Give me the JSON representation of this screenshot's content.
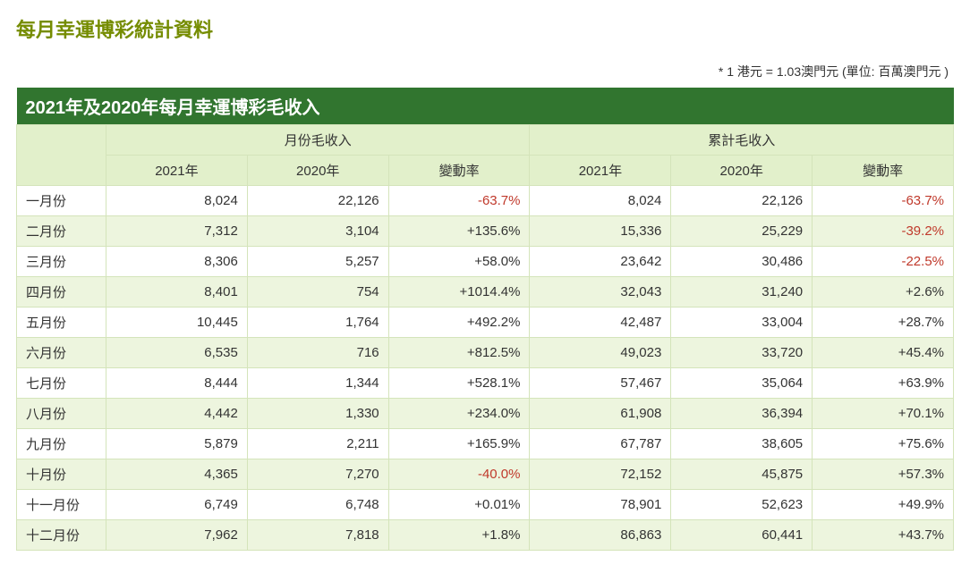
{
  "title": "每月幸運博彩統計資料",
  "note": "* 1 港元 = 1.03澳門元 (單位: 百萬澳門元  )",
  "table": {
    "caption": "2021年及2020年每月幸運博彩毛收入",
    "group_headers": [
      "月份毛收入",
      "累計毛收入"
    ],
    "sub_headers": [
      "2021年",
      "2020年",
      "變動率",
      "2021年",
      "2020年",
      "變動率"
    ],
    "rows": [
      {
        "label": "一月份",
        "m2021": "8,024",
        "m2020": "22,126",
        "mRate": "-63.7%",
        "mNeg": true,
        "c2021": "8,024",
        "c2020": "22,126",
        "cRate": "-63.7%",
        "cNeg": true
      },
      {
        "label": "二月份",
        "m2021": "7,312",
        "m2020": "3,104",
        "mRate": "+135.6%",
        "mNeg": false,
        "c2021": "15,336",
        "c2020": "25,229",
        "cRate": "-39.2%",
        "cNeg": true
      },
      {
        "label": "三月份",
        "m2021": "8,306",
        "m2020": "5,257",
        "mRate": "+58.0%",
        "mNeg": false,
        "c2021": "23,642",
        "c2020": "30,486",
        "cRate": "-22.5%",
        "cNeg": true
      },
      {
        "label": "四月份",
        "m2021": "8,401",
        "m2020": "754",
        "mRate": "+1014.4%",
        "mNeg": false,
        "c2021": "32,043",
        "c2020": "31,240",
        "cRate": "+2.6%",
        "cNeg": false
      },
      {
        "label": "五月份",
        "m2021": "10,445",
        "m2020": "1,764",
        "mRate": "+492.2%",
        "mNeg": false,
        "c2021": "42,487",
        "c2020": "33,004",
        "cRate": "+28.7%",
        "cNeg": false
      },
      {
        "label": "六月份",
        "m2021": "6,535",
        "m2020": "716",
        "mRate": "+812.5%",
        "mNeg": false,
        "c2021": "49,023",
        "c2020": "33,720",
        "cRate": "+45.4%",
        "cNeg": false
      },
      {
        "label": "七月份",
        "m2021": "8,444",
        "m2020": "1,344",
        "mRate": "+528.1%",
        "mNeg": false,
        "c2021": "57,467",
        "c2020": "35,064",
        "cRate": "+63.9%",
        "cNeg": false
      },
      {
        "label": "八月份",
        "m2021": "4,442",
        "m2020": "1,330",
        "mRate": "+234.0%",
        "mNeg": false,
        "c2021": "61,908",
        "c2020": "36,394",
        "cRate": "+70.1%",
        "cNeg": false
      },
      {
        "label": "九月份",
        "m2021": "5,879",
        "m2020": "2,211",
        "mRate": "+165.9%",
        "mNeg": false,
        "c2021": "67,787",
        "c2020": "38,605",
        "cRate": "+75.6%",
        "cNeg": false
      },
      {
        "label": "十月份",
        "m2021": "4,365",
        "m2020": "7,270",
        "mRate": "-40.0%",
        "mNeg": true,
        "c2021": "72,152",
        "c2020": "45,875",
        "cRate": "+57.3%",
        "cNeg": false
      },
      {
        "label": "十一月份",
        "m2021": "6,749",
        "m2020": "6,748",
        "mRate": "+0.01%",
        "mNeg": false,
        "c2021": "78,901",
        "c2020": "52,623",
        "cRate": "+49.9%",
        "cNeg": false
      },
      {
        "label": "十二月份",
        "m2021": "7,962",
        "m2020": "7,818",
        "mRate": "+1.8%",
        "mNeg": false,
        "c2021": "86,863",
        "c2020": "60,441",
        "cRate": "+43.7%",
        "cNeg": false
      }
    ],
    "colors": {
      "header_bg": "#31752f",
      "subheader_bg": "#e2f0cb",
      "row_alt_bg": "#edf5de",
      "border": "#d4e4ba",
      "negative_text": "#c0392b",
      "title_text": "#758c00"
    }
  }
}
